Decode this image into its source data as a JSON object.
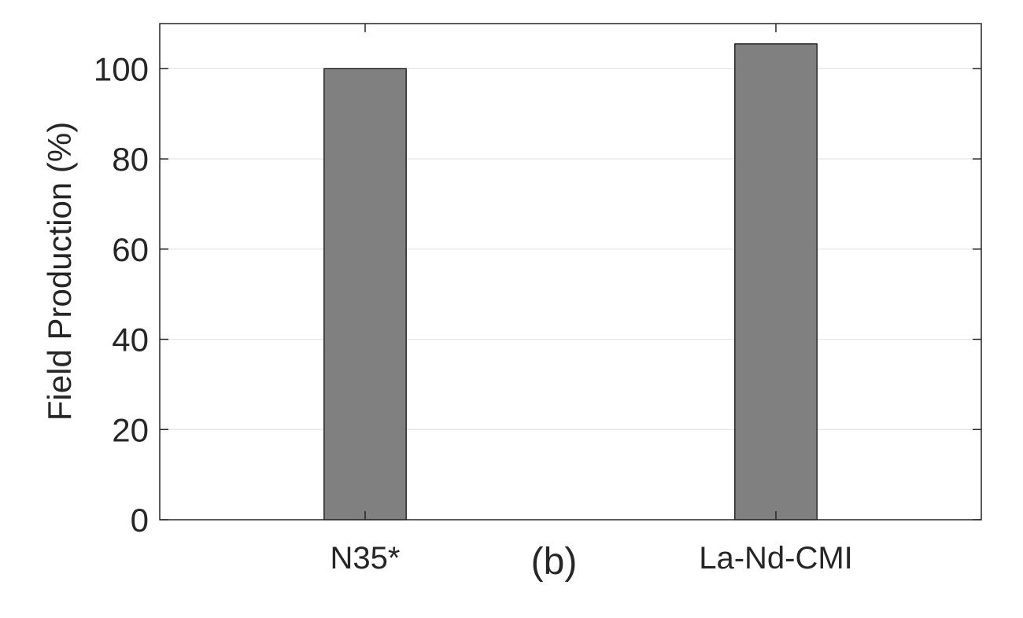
{
  "chart_data": {
    "type": "bar",
    "categories": [
      "N35*",
      "La-Nd-CMI"
    ],
    "values": [
      100,
      105.5
    ],
    "ylabel": "Field Production (%)",
    "xlabel": "",
    "ylim": [
      0,
      110
    ],
    "yticks": [
      0,
      20,
      40,
      60,
      80,
      100
    ],
    "grid": "y-major",
    "annotation": "(b)",
    "bar_color": "#808080",
    "bar_edge_color": "#000000",
    "grid_color": "#e6e6e6",
    "axis_color": "#262626"
  }
}
